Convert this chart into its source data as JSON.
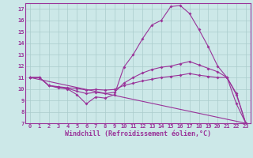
{
  "background_color": "#cce8e8",
  "grid_color": "#aacccc",
  "line_color": "#993399",
  "spine_color": "#993399",
  "xlim": [
    -0.5,
    23.5
  ],
  "ylim": [
    7,
    17.5
  ],
  "yticks": [
    7,
    8,
    9,
    10,
    11,
    12,
    13,
    14,
    15,
    16,
    17
  ],
  "xticks": [
    0,
    1,
    2,
    3,
    4,
    5,
    6,
    7,
    8,
    9,
    10,
    11,
    12,
    13,
    14,
    15,
    16,
    17,
    18,
    19,
    20,
    21,
    22,
    23
  ],
  "xlabel": "Windchill (Refroidissement éolien,°C)",
  "line1_x": [
    0,
    1,
    2,
    3,
    4,
    5,
    6,
    7,
    8,
    9,
    10,
    11,
    12,
    13,
    14,
    15,
    16,
    17,
    18,
    19,
    20,
    21,
    22,
    23
  ],
  "line1_y": [
    11.0,
    11.0,
    10.3,
    10.1,
    10.0,
    9.5,
    8.7,
    9.3,
    9.2,
    9.5,
    11.9,
    13.0,
    14.4,
    15.6,
    16.0,
    17.2,
    17.3,
    16.6,
    15.2,
    13.7,
    12.0,
    11.0,
    8.7,
    7.0
  ],
  "line2_x": [
    0,
    1,
    2,
    3,
    4,
    5,
    6,
    7,
    8,
    9,
    10,
    11,
    12,
    13,
    14,
    15,
    16,
    17,
    18,
    19,
    20,
    21,
    22,
    23
  ],
  "line2_y": [
    11.0,
    11.0,
    10.3,
    10.15,
    10.05,
    9.8,
    9.6,
    9.7,
    9.6,
    9.7,
    10.5,
    11.0,
    11.4,
    11.7,
    11.9,
    12.0,
    12.2,
    12.4,
    12.1,
    11.8,
    11.5,
    11.0,
    9.5,
    7.0
  ],
  "line3_x": [
    0,
    1,
    2,
    3,
    4,
    5,
    6,
    7,
    8,
    9,
    10,
    11,
    12,
    13,
    14,
    15,
    16,
    17,
    18,
    19,
    20,
    21,
    22,
    23
  ],
  "line3_y": [
    11.0,
    11.0,
    10.3,
    10.2,
    10.1,
    10.05,
    9.9,
    9.95,
    9.9,
    9.95,
    10.3,
    10.5,
    10.7,
    10.85,
    11.0,
    11.1,
    11.2,
    11.35,
    11.2,
    11.1,
    11.0,
    11.0,
    9.6,
    7.0
  ],
  "line4_x": [
    0,
    23
  ],
  "line4_y": [
    11.0,
    7.0
  ],
  "msize": 2.0,
  "lw": 0.8,
  "tick_fontsize": 5.0,
  "xlabel_fontsize": 6.0
}
